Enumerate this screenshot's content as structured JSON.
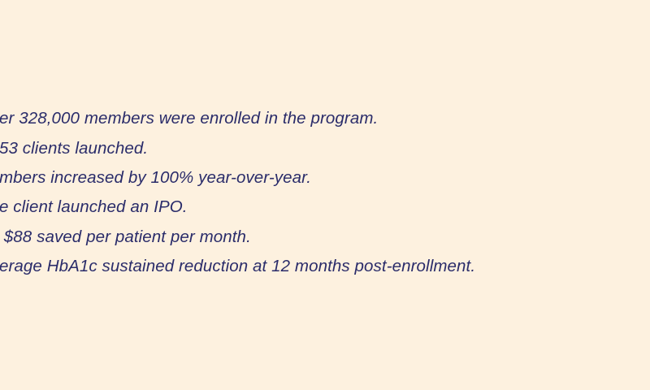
{
  "colors": {
    "background": "#fdf1df",
    "text": "#2a2c6a"
  },
  "facts": [
    "er 328,000 members were enrolled in the program.",
    "53 clients launched.",
    "mbers increased by 100% year-over-year.",
    "e client launched an IPO.",
    " $88 saved per patient per month.",
    "erage HbA1c sustained reduction at 12 months post-enrollment."
  ]
}
